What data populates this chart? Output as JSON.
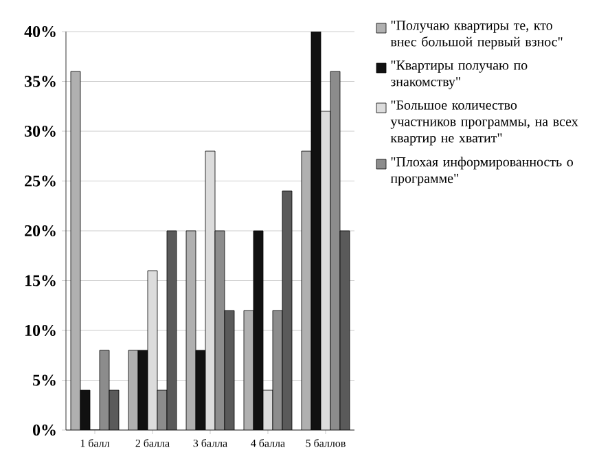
{
  "chart_data": {
    "type": "bar",
    "categories": [
      "1 балл",
      "2 балла",
      "3 балла",
      "4 балла",
      "5 баллов"
    ],
    "series": [
      {
        "name": "\"Получаю квартиры те, кто внес большой первый взнос\"",
        "color": "#b0b0b0",
        "values": [
          36,
          8,
          20,
          12,
          28
        ]
      },
      {
        "name": "\"Квартиры получаю по знакомству\"",
        "color": "#111111",
        "values": [
          4,
          8,
          8,
          20,
          40
        ]
      },
      {
        "name": "\"Большое количество участников программы, на всех квартир не хватит\"",
        "color": "#dcdcdc",
        "values": [
          0,
          16,
          28,
          4,
          32
        ]
      },
      {
        "name": "\"Плохая информированность о программе\"",
        "color": "#8c8c8c",
        "values": [
          8,
          4,
          20,
          12,
          36
        ]
      },
      {
        "color": "#5a5a5a",
        "values": [
          4,
          20,
          12,
          24,
          20
        ]
      }
    ],
    "ylim": [
      0,
      40
    ],
    "yticks": [
      {
        "value": 0,
        "label": "0%"
      },
      {
        "value": 5,
        "label": "5%"
      },
      {
        "value": 10,
        "label": "10%"
      },
      {
        "value": 15,
        "label": "15%"
      },
      {
        "value": 20,
        "label": "20%"
      },
      {
        "value": 25,
        "label": "25%"
      },
      {
        "value": 30,
        "label": "30%"
      },
      {
        "value": 35,
        "label": "35%"
      },
      {
        "value": 40,
        "label": "40%"
      }
    ],
    "grid": "y",
    "legend": "right"
  }
}
